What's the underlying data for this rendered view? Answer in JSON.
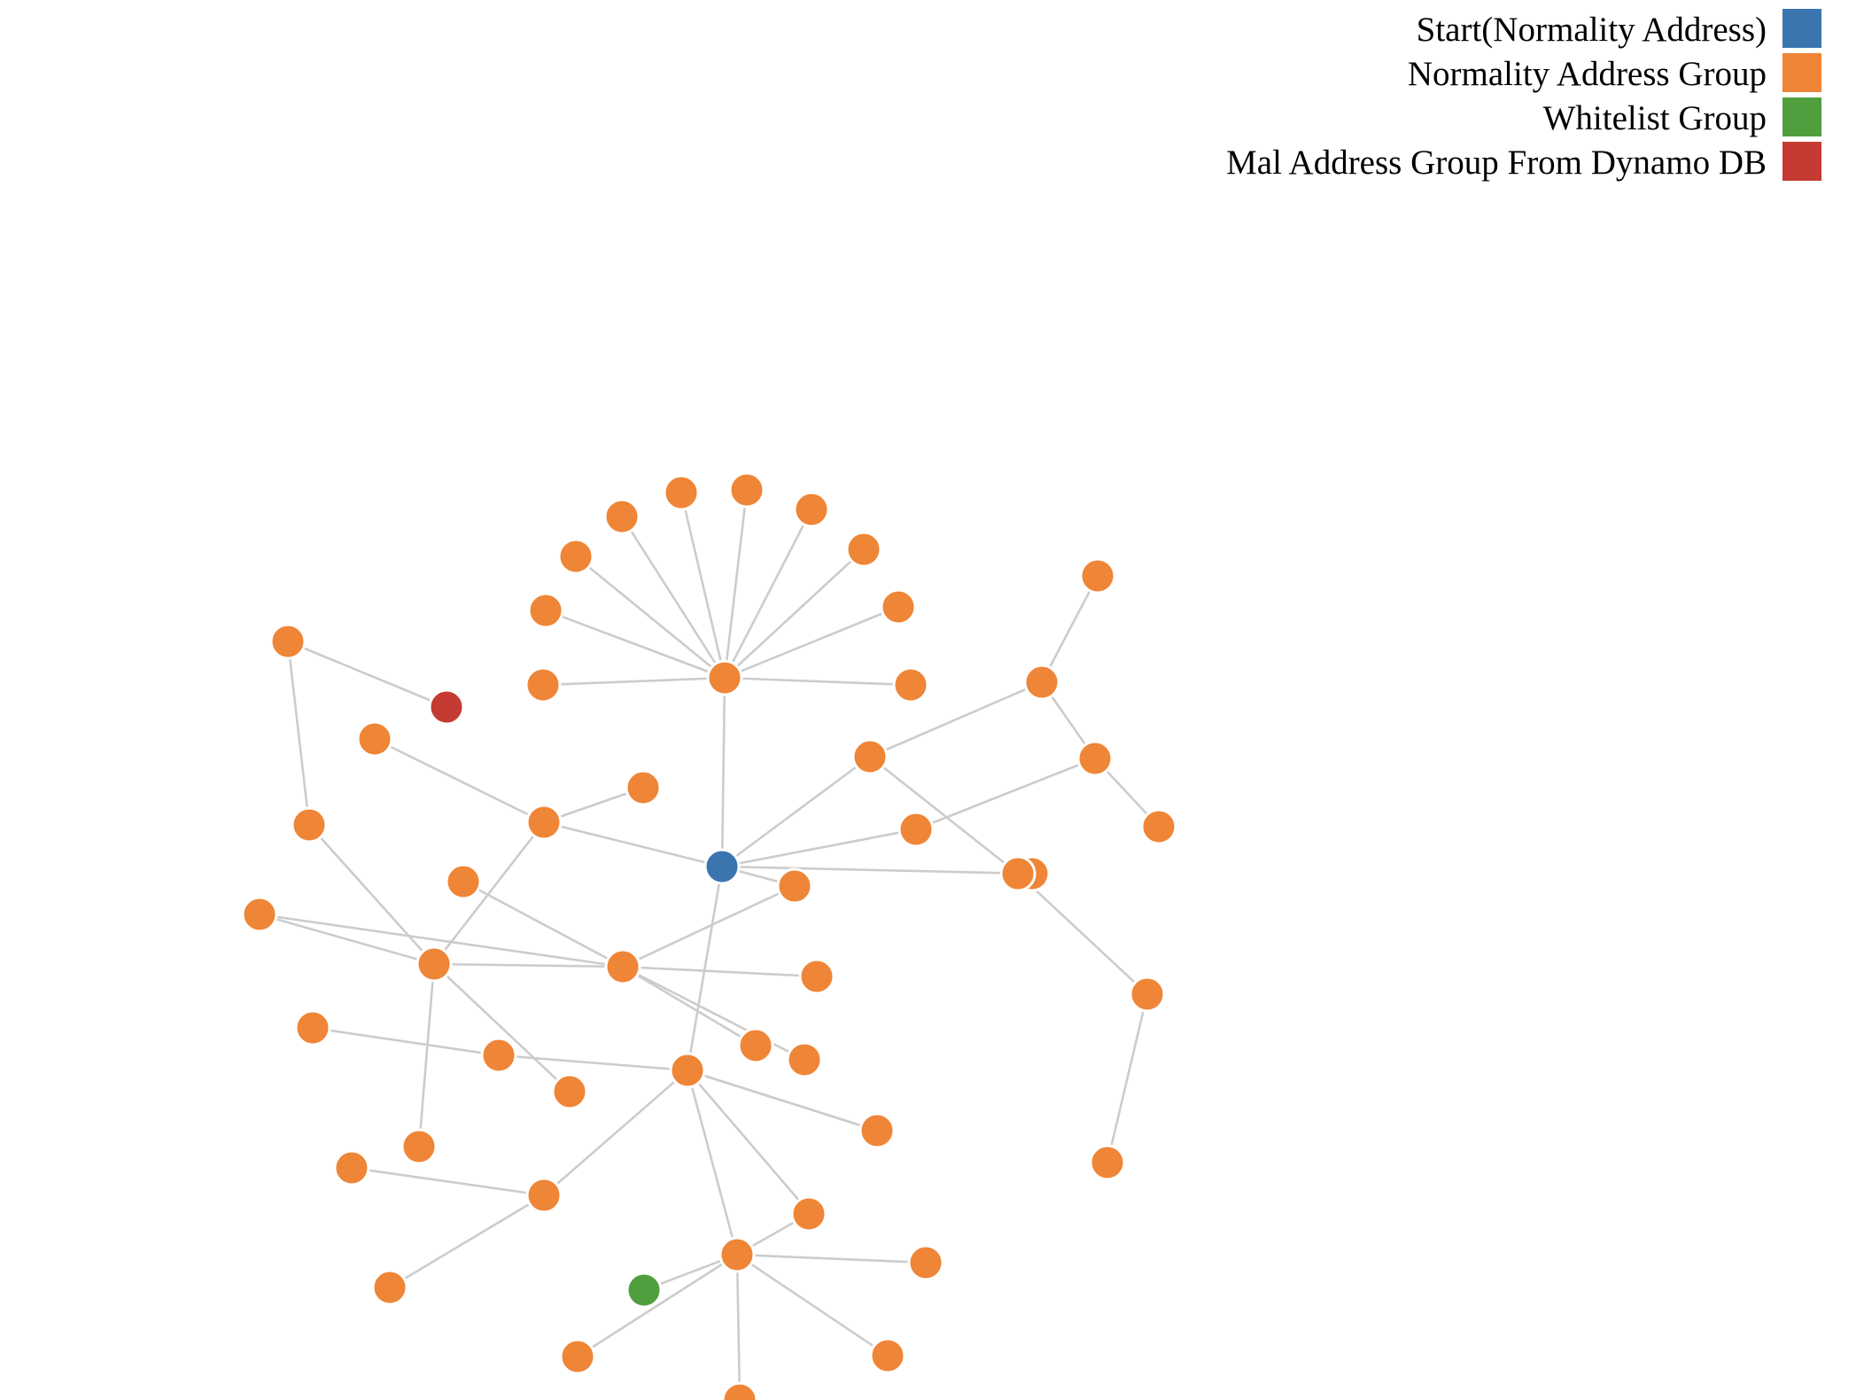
{
  "legend": [
    {
      "label": "Start(Normality Address)",
      "group": "start",
      "color": "#3a75b0"
    },
    {
      "label": "Normality Address Group",
      "group": "normal",
      "color": "#ef8536"
    },
    {
      "label": "Whitelist Group",
      "group": "whitelist",
      "color": "#519e3e"
    },
    {
      "label": "Mal Address Group From Dynamo DB",
      "group": "malicious",
      "color": "#c53a32"
    }
  ],
  "graph": {
    "nodes": [
      {
        "id": "start",
        "group": "start"
      },
      {
        "id": "hub1",
        "group": "normal"
      },
      {
        "id": "n1",
        "group": "normal"
      },
      {
        "id": "n2",
        "group": "normal"
      },
      {
        "id": "n3",
        "group": "normal"
      },
      {
        "id": "n4",
        "group": "normal"
      },
      {
        "id": "n5",
        "group": "normal"
      },
      {
        "id": "n6",
        "group": "normal"
      },
      {
        "id": "n7",
        "group": "normal"
      },
      {
        "id": "n8",
        "group": "normal"
      },
      {
        "id": "n9",
        "group": "normal"
      },
      {
        "id": "n10",
        "group": "normal"
      },
      {
        "id": "hub2",
        "group": "normal"
      },
      {
        "id": "c1",
        "group": "normal"
      },
      {
        "id": "c2",
        "group": "normal"
      },
      {
        "id": "c3",
        "group": "normal"
      },
      {
        "id": "c4",
        "group": "normal"
      },
      {
        "id": "c5",
        "group": "normal"
      },
      {
        "id": "c6",
        "group": "normal"
      },
      {
        "id": "c7",
        "group": "normal"
      },
      {
        "id": "c8",
        "group": "normal"
      },
      {
        "id": "c9",
        "group": "normal"
      },
      {
        "id": "c10",
        "group": "normal"
      },
      {
        "id": "mal",
        "group": "malicious"
      },
      {
        "id": "l1",
        "group": "normal"
      },
      {
        "id": "l2",
        "group": "normal"
      },
      {
        "id": "l3",
        "group": "normal"
      },
      {
        "id": "hub3",
        "group": "normal"
      },
      {
        "id": "l4",
        "group": "normal"
      },
      {
        "id": "l5",
        "group": "normal"
      },
      {
        "id": "l6",
        "group": "normal"
      },
      {
        "id": "l7",
        "group": "normal"
      },
      {
        "id": "l8",
        "group": "normal"
      },
      {
        "id": "hub4",
        "group": "normal"
      },
      {
        "id": "m1",
        "group": "normal"
      },
      {
        "id": "m2",
        "group": "normal"
      },
      {
        "id": "m3",
        "group": "normal"
      },
      {
        "id": "m4",
        "group": "normal"
      },
      {
        "id": "m5",
        "group": "normal"
      },
      {
        "id": "m6",
        "group": "normal"
      },
      {
        "id": "hub5",
        "group": "normal"
      },
      {
        "id": "b1",
        "group": "normal"
      },
      {
        "id": "b2",
        "group": "normal"
      },
      {
        "id": "b3",
        "group": "normal"
      },
      {
        "id": "b4",
        "group": "normal"
      },
      {
        "id": "b5",
        "group": "normal"
      },
      {
        "id": "b6",
        "group": "normal"
      },
      {
        "id": "hub6",
        "group": "normal"
      },
      {
        "id": "b7",
        "group": "normal"
      },
      {
        "id": "b8",
        "group": "normal"
      },
      {
        "id": "b9",
        "group": "normal"
      },
      {
        "id": "wl",
        "group": "whitelist"
      },
      {
        "id": "b10",
        "group": "normal"
      },
      {
        "id": "b11",
        "group": "normal"
      },
      {
        "id": "r1",
        "group": "normal"
      },
      {
        "id": "r2",
        "group": "normal"
      },
      {
        "id": "r3",
        "group": "normal"
      },
      {
        "id": "r4",
        "group": "normal"
      },
      {
        "id": "r5",
        "group": "normal"
      },
      {
        "id": "r6",
        "group": "normal"
      },
      {
        "id": "r7",
        "group": "normal"
      },
      {
        "id": "r8",
        "group": "normal"
      },
      {
        "id": "r9",
        "group": "normal"
      }
    ],
    "links": [
      [
        "start",
        "hub1"
      ],
      [
        "hub1",
        "n1"
      ],
      [
        "hub1",
        "n2"
      ],
      [
        "hub1",
        "n3"
      ],
      [
        "hub1",
        "n4"
      ],
      [
        "hub1",
        "n5"
      ],
      [
        "hub1",
        "n6"
      ],
      [
        "hub1",
        "n7"
      ],
      [
        "hub1",
        "n8"
      ],
      [
        "hub1",
        "n9"
      ],
      [
        "hub1",
        "n10"
      ],
      [
        "start",
        "hub2"
      ],
      [
        "start",
        "c6"
      ],
      [
        "start",
        "c7"
      ],
      [
        "start",
        "c8"
      ],
      [
        "start",
        "c9"
      ],
      [
        "start",
        "c10"
      ],
      [
        "hub2",
        "c1"
      ],
      [
        "hub2",
        "c2"
      ],
      [
        "c6",
        "r1"
      ],
      [
        "c6",
        "r3"
      ],
      [
        "c7",
        "r2"
      ],
      [
        "r1",
        "r2"
      ],
      [
        "r1",
        "r4"
      ],
      [
        "r2",
        "r5"
      ],
      [
        "r3",
        "r6"
      ],
      [
        "r6",
        "r7"
      ],
      [
        "mal",
        "l1"
      ],
      [
        "l1",
        "l2"
      ],
      [
        "l2",
        "hub3"
      ],
      [
        "hub2",
        "hub3"
      ],
      [
        "hub3",
        "l3"
      ],
      [
        "hub3",
        "l4"
      ],
      [
        "hub3",
        "l5"
      ],
      [
        "hub3",
        "hub4"
      ],
      [
        "c3",
        "hub4"
      ],
      [
        "c4",
        "hub4"
      ],
      [
        "c8",
        "hub4"
      ],
      [
        "hub4",
        "m1"
      ],
      [
        "hub4",
        "m2"
      ],
      [
        "hub4",
        "m3"
      ],
      [
        "m2",
        "m4"
      ],
      [
        "c9",
        "hub5"
      ],
      [
        "l6",
        "m6"
      ],
      [
        "m6",
        "hub5"
      ],
      [
        "hub5",
        "b1"
      ],
      [
        "hub5",
        "b2"
      ],
      [
        "hub5",
        "b3"
      ],
      [
        "hub5",
        "b4"
      ],
      [
        "hub5",
        "hub6"
      ],
      [
        "b2",
        "l7"
      ],
      [
        "b2",
        "l8"
      ],
      [
        "hub6",
        "b5"
      ],
      [
        "hub6",
        "wl"
      ],
      [
        "hub6",
        "b6"
      ],
      [
        "hub6",
        "b7"
      ],
      [
        "hub6",
        "b8"
      ],
      [
        "hub6",
        "b9"
      ]
    ]
  }
}
